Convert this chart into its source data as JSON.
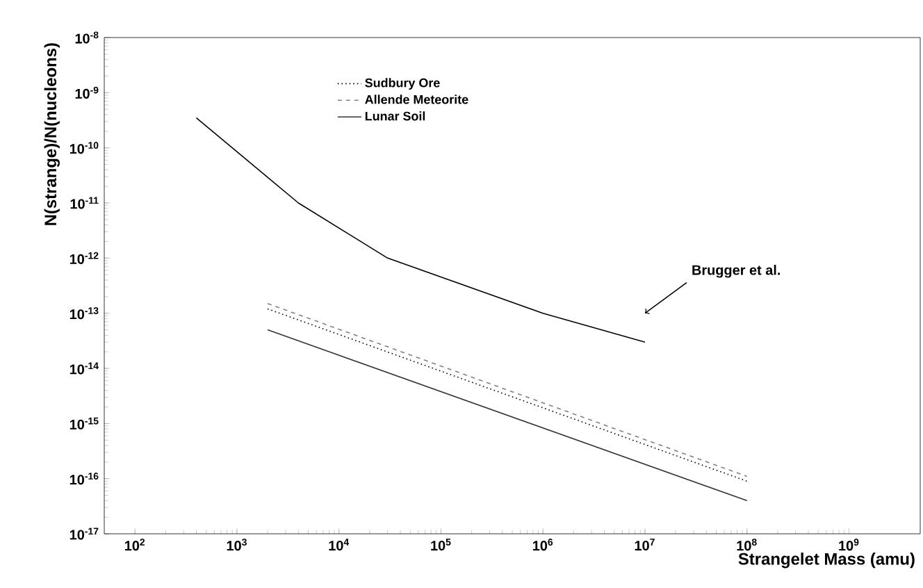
{
  "chart_data": {
    "type": "line",
    "xlabel": "Strangelet Mass (amu)",
    "ylabel": "N(strange)/N(nucleons)",
    "log": "xy",
    "legend": "top",
    "xlim": [
      50,
      5000000000
    ],
    "ylim": [
      1e-17,
      1e-08
    ],
    "xticks": [
      {
        "value": 100,
        "label": "10$^{2}$"
      },
      {
        "value": 1000,
        "label": "10$^{3}$"
      },
      {
        "value": 10000,
        "label": "10$^{4}$"
      },
      {
        "value": 100000,
        "label": "10$^{5}$"
      },
      {
        "value": 1000000,
        "label": "10$^{6}$"
      },
      {
        "value": 10000000,
        "label": "10$^{7}$"
      },
      {
        "value": 100000000,
        "label": "10$^{8}$"
      },
      {
        "value": 1000000000,
        "label": "10$^{9}$"
      }
    ],
    "yticks": [
      {
        "value": 1e-17,
        "label": "10$^{-17}$"
      },
      {
        "value": 1e-16,
        "label": "10$^{-16}$"
      },
      {
        "value": 1e-15,
        "label": "10$^{-15}$"
      },
      {
        "value": 1e-14,
        "label": "10$^{-14}$"
      },
      {
        "value": 1e-13,
        "label": "10$^{-13}$"
      },
      {
        "value": 1e-12,
        "label": "10$^{-12}$"
      },
      {
        "value": 1e-11,
        "label": "10$^{-11}$"
      },
      {
        "value": 1e-10,
        "label": "10$^{-10}$"
      },
      {
        "value": 1e-09,
        "label": "10$^{-9}$"
      },
      {
        "value": 1e-08,
        "label": "10$^{-8}$"
      }
    ],
    "series": [
      {
        "name": "Sudbury Ore",
        "color": "#000000",
        "line_style": "dotted",
        "x": [
          2000,
          100000000
        ],
        "values": [
          1.2e-13,
          9e-17
        ]
      },
      {
        "name": "Allende Meteorite",
        "color": "#808080",
        "line_style": "dashed",
        "x": [
          2000,
          100000000
        ],
        "values": [
          1.5e-13,
          1.1e-16
        ]
      },
      {
        "name": "Lunar Soil",
        "color": "#333333",
        "line_style": "solid",
        "x": [
          2000,
          100000000
        ],
        "values": [
          5e-14,
          4e-17
        ]
      },
      {
        "color": "#000000",
        "line_style": "solid",
        "x": [
          400,
          4000,
          30000,
          1000000,
          10000000
        ],
        "values": [
          3.5e-10,
          1e-11,
          1e-12,
          1e-13,
          3e-14
        ]
      }
    ],
    "annotations": [
      {
        "text": "Brugger et al.",
        "x": 10000000,
        "y": 1e-13
      }
    ]
  }
}
